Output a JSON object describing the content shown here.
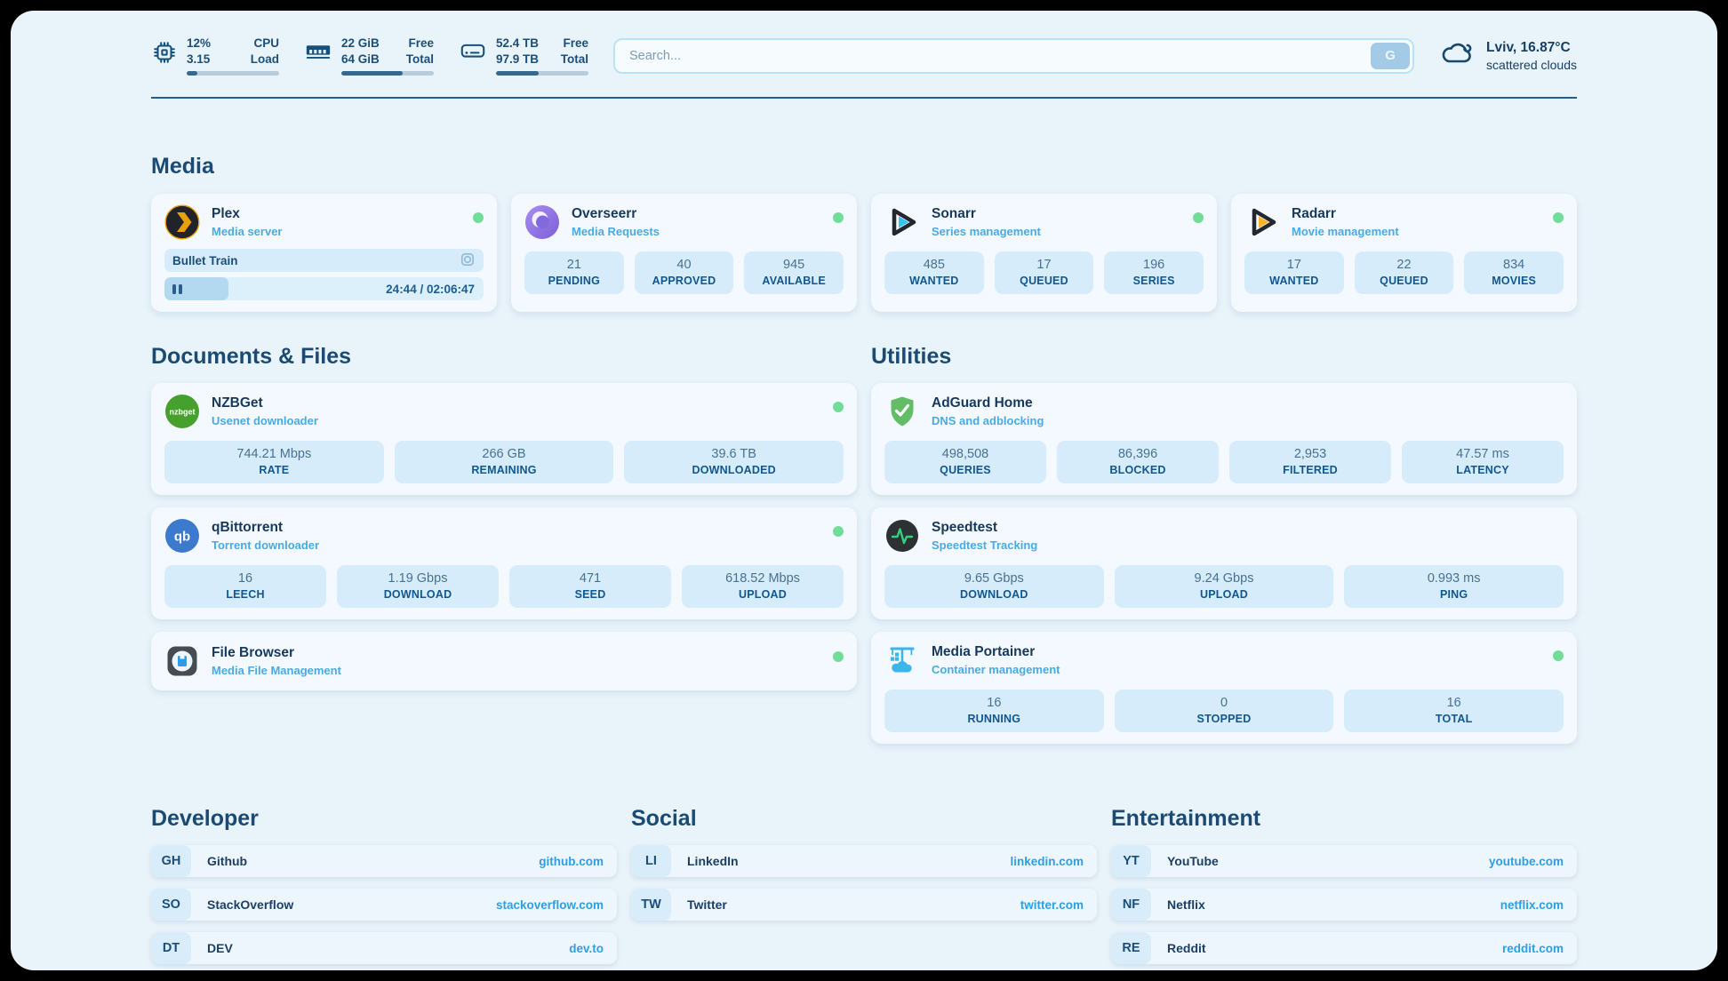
{
  "header": {
    "metrics": [
      {
        "values": [
          "12%",
          "3.15"
        ],
        "labels": [
          "CPU",
          "Load"
        ],
        "progress": 12
      },
      {
        "values": [
          "22 GiB",
          "64 GiB"
        ],
        "labels": [
          "Free",
          "Total"
        ],
        "progress": 66
      },
      {
        "values": [
          "52.4 TB",
          "97.9 TB"
        ],
        "labels": [
          "Free",
          "Total"
        ],
        "progress": 46
      }
    ],
    "search": {
      "placeholder": "Search...",
      "button_label": "G"
    },
    "weather": {
      "location_temp": "Lviv, 16.87°C",
      "condition": "scattered clouds"
    }
  },
  "media": {
    "title": "Media",
    "apps": [
      {
        "name": "Plex",
        "subtitle": "Media server",
        "media": {
          "title": "Bullet Train",
          "time": "24:44 / 02:06:47",
          "progress": 20
        }
      },
      {
        "name": "Overseerr",
        "subtitle": "Media Requests",
        "stats": [
          {
            "value": "21",
            "label": "PENDING"
          },
          {
            "value": "40",
            "label": "APPROVED"
          },
          {
            "value": "945",
            "label": "AVAILABLE"
          }
        ]
      },
      {
        "name": "Sonarr",
        "subtitle": "Series management",
        "stats": [
          {
            "value": "485",
            "label": "WANTED"
          },
          {
            "value": "17",
            "label": "QUEUED"
          },
          {
            "value": "196",
            "label": "SERIES"
          }
        ]
      },
      {
        "name": "Radarr",
        "subtitle": "Movie management",
        "stats": [
          {
            "value": "17",
            "label": "WANTED"
          },
          {
            "value": "22",
            "label": "QUEUED"
          },
          {
            "value": "834",
            "label": "MOVIES"
          }
        ]
      }
    ]
  },
  "documents": {
    "title": "Documents & Files",
    "apps": [
      {
        "name": "NZBGet",
        "subtitle": "Usenet downloader",
        "stats": [
          {
            "value": "744.21 Mbps",
            "label": "RATE"
          },
          {
            "value": "266 GB",
            "label": "REMAINING"
          },
          {
            "value": "39.6 TB",
            "label": "DOWNLOADED"
          }
        ]
      },
      {
        "name": "qBittorrent",
        "subtitle": "Torrent downloader",
        "stats": [
          {
            "value": "16",
            "label": "LEECH"
          },
          {
            "value": "1.19 Gbps",
            "label": "DOWNLOAD"
          },
          {
            "value": "471",
            "label": "SEED"
          },
          {
            "value": "618.52 Mbps",
            "label": "UPLOAD"
          }
        ]
      },
      {
        "name": "File Browser",
        "subtitle": "Media File Management",
        "stats": []
      }
    ]
  },
  "utilities": {
    "title": "Utilities",
    "apps": [
      {
        "name": "AdGuard Home",
        "subtitle": "DNS and adblocking",
        "stats": [
          {
            "value": "498,508",
            "label": "QUERIES"
          },
          {
            "value": "86,396",
            "label": "BLOCKED"
          },
          {
            "value": "2,953",
            "label": "FILTERED"
          },
          {
            "value": "47.57 ms",
            "label": "LATENCY"
          }
        ]
      },
      {
        "name": "Speedtest",
        "subtitle": "Speedtest Tracking",
        "stats": [
          {
            "value": "9.65 Gbps",
            "label": "DOWNLOAD"
          },
          {
            "value": "9.24 Gbps",
            "label": "UPLOAD"
          },
          {
            "value": "0.993 ms",
            "label": "PING"
          }
        ]
      },
      {
        "name": "Media Portainer",
        "subtitle": "Container management",
        "stats": [
          {
            "value": "16",
            "label": "RUNNING"
          },
          {
            "value": "0",
            "label": "STOPPED"
          },
          {
            "value": "16",
            "label": "TOTAL"
          }
        ]
      }
    ]
  },
  "links": {
    "sections": [
      {
        "title": "Developer",
        "items": [
          {
            "abbr": "GH",
            "name": "Github",
            "url": "github.com"
          },
          {
            "abbr": "SO",
            "name": "StackOverflow",
            "url": "stackoverflow.com"
          },
          {
            "abbr": "DT",
            "name": "DEV",
            "url": "dev.to"
          }
        ]
      },
      {
        "title": "Social",
        "items": [
          {
            "abbr": "LI",
            "name": "LinkedIn",
            "url": "linkedin.com"
          },
          {
            "abbr": "TW",
            "name": "Twitter",
            "url": "twitter.com"
          }
        ]
      },
      {
        "title": "Entertainment",
        "items": [
          {
            "abbr": "YT",
            "name": "YouTube",
            "url": "youtube.com"
          },
          {
            "abbr": "NF",
            "name": "Netflix",
            "url": "netflix.com"
          },
          {
            "abbr": "RE",
            "name": "Reddit",
            "url": "reddit.com"
          }
        ]
      }
    ]
  }
}
